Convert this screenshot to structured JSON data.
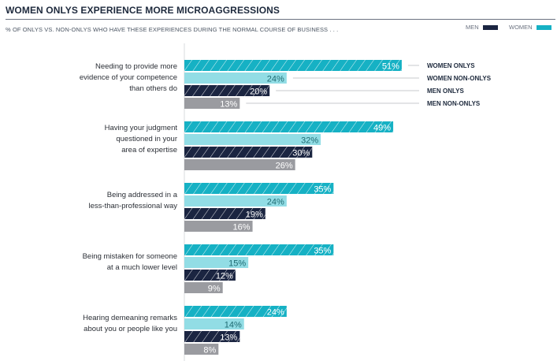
{
  "header": {
    "title": "WOMEN ONLYS EXPERIENCE MORE MICROAGGRESSIONS",
    "subtitle": "% OF ONLYS VS. NON-ONLYS WHO HAVE THESE EXPERIENCES DURING THE NORMAL COURSE OF BUSINESS . . ."
  },
  "legend": {
    "items": [
      {
        "label": "MEN",
        "color": "#1b2541"
      },
      {
        "label": "WOMEN",
        "color": "#16b1c4"
      }
    ]
  },
  "colors": {
    "women_onlys": "#16b1c4",
    "women_non_onlys": "#92dde5",
    "men_onlys": "#1b2541",
    "men_non_onlys": "#9a9ba0",
    "label_dark": "#1e6b72",
    "leader_line": "#c7c9cc",
    "axis": "#d9dbde"
  },
  "chart_data": {
    "type": "bar",
    "orientation": "horizontal",
    "title": "WOMEN ONLYS EXPERIENCE MORE MICROAGGRESSIONS",
    "subtitle": "% OF ONLYS VS. NON-ONLYS WHO HAVE THESE EXPERIENCES DURING THE NORMAL COURSE OF BUSINESS . . .",
    "xlabel": "",
    "ylabel": "",
    "xlim": [
      0,
      100
    ],
    "grid": false,
    "unit": "%",
    "categories": [
      "Needing to provide more evidence of your competence than others do",
      "Having your judgment questioned in your area of expertise",
      "Being addressed in a less-than-professional way",
      "Being mistaken for someone at a much lower level",
      "Hearing demeaning remarks about you or people like you"
    ],
    "category_lines": [
      [
        "Needing to provide more",
        "evidence of your competence",
        "than others do"
      ],
      [
        "Having your judgment",
        "questioned in your",
        "area of expertise"
      ],
      [
        "Being addressed in a",
        "less-than-professional way"
      ],
      [
        "Being mistaken for someone",
        "at a much lower level"
      ],
      [
        "Hearing demeaning remarks",
        "about you or people like you"
      ]
    ],
    "series": [
      {
        "name": "WOMEN ONLYS",
        "key": "women_onlys",
        "pattern": "hatched",
        "values": [
          51,
          49,
          35,
          35,
          24
        ]
      },
      {
        "name": "WOMEN NON-ONLYS",
        "key": "women_non_onlys",
        "pattern": "solid",
        "values": [
          24,
          32,
          24,
          15,
          14
        ]
      },
      {
        "name": "MEN ONLYS",
        "key": "men_onlys",
        "pattern": "hatched",
        "values": [
          20,
          30,
          19,
          12,
          13
        ]
      },
      {
        "name": "MEN NON-ONLYS",
        "key": "men_non_onlys",
        "pattern": "solid",
        "values": [
          13,
          26,
          16,
          9,
          8
        ]
      }
    ],
    "series_labels_position": "right-of-first-group",
    "legend": [
      {
        "label": "MEN",
        "color": "#1b2541"
      },
      {
        "label": "WOMEN",
        "color": "#16b1c4"
      }
    ],
    "legend_position": "top-right"
  }
}
